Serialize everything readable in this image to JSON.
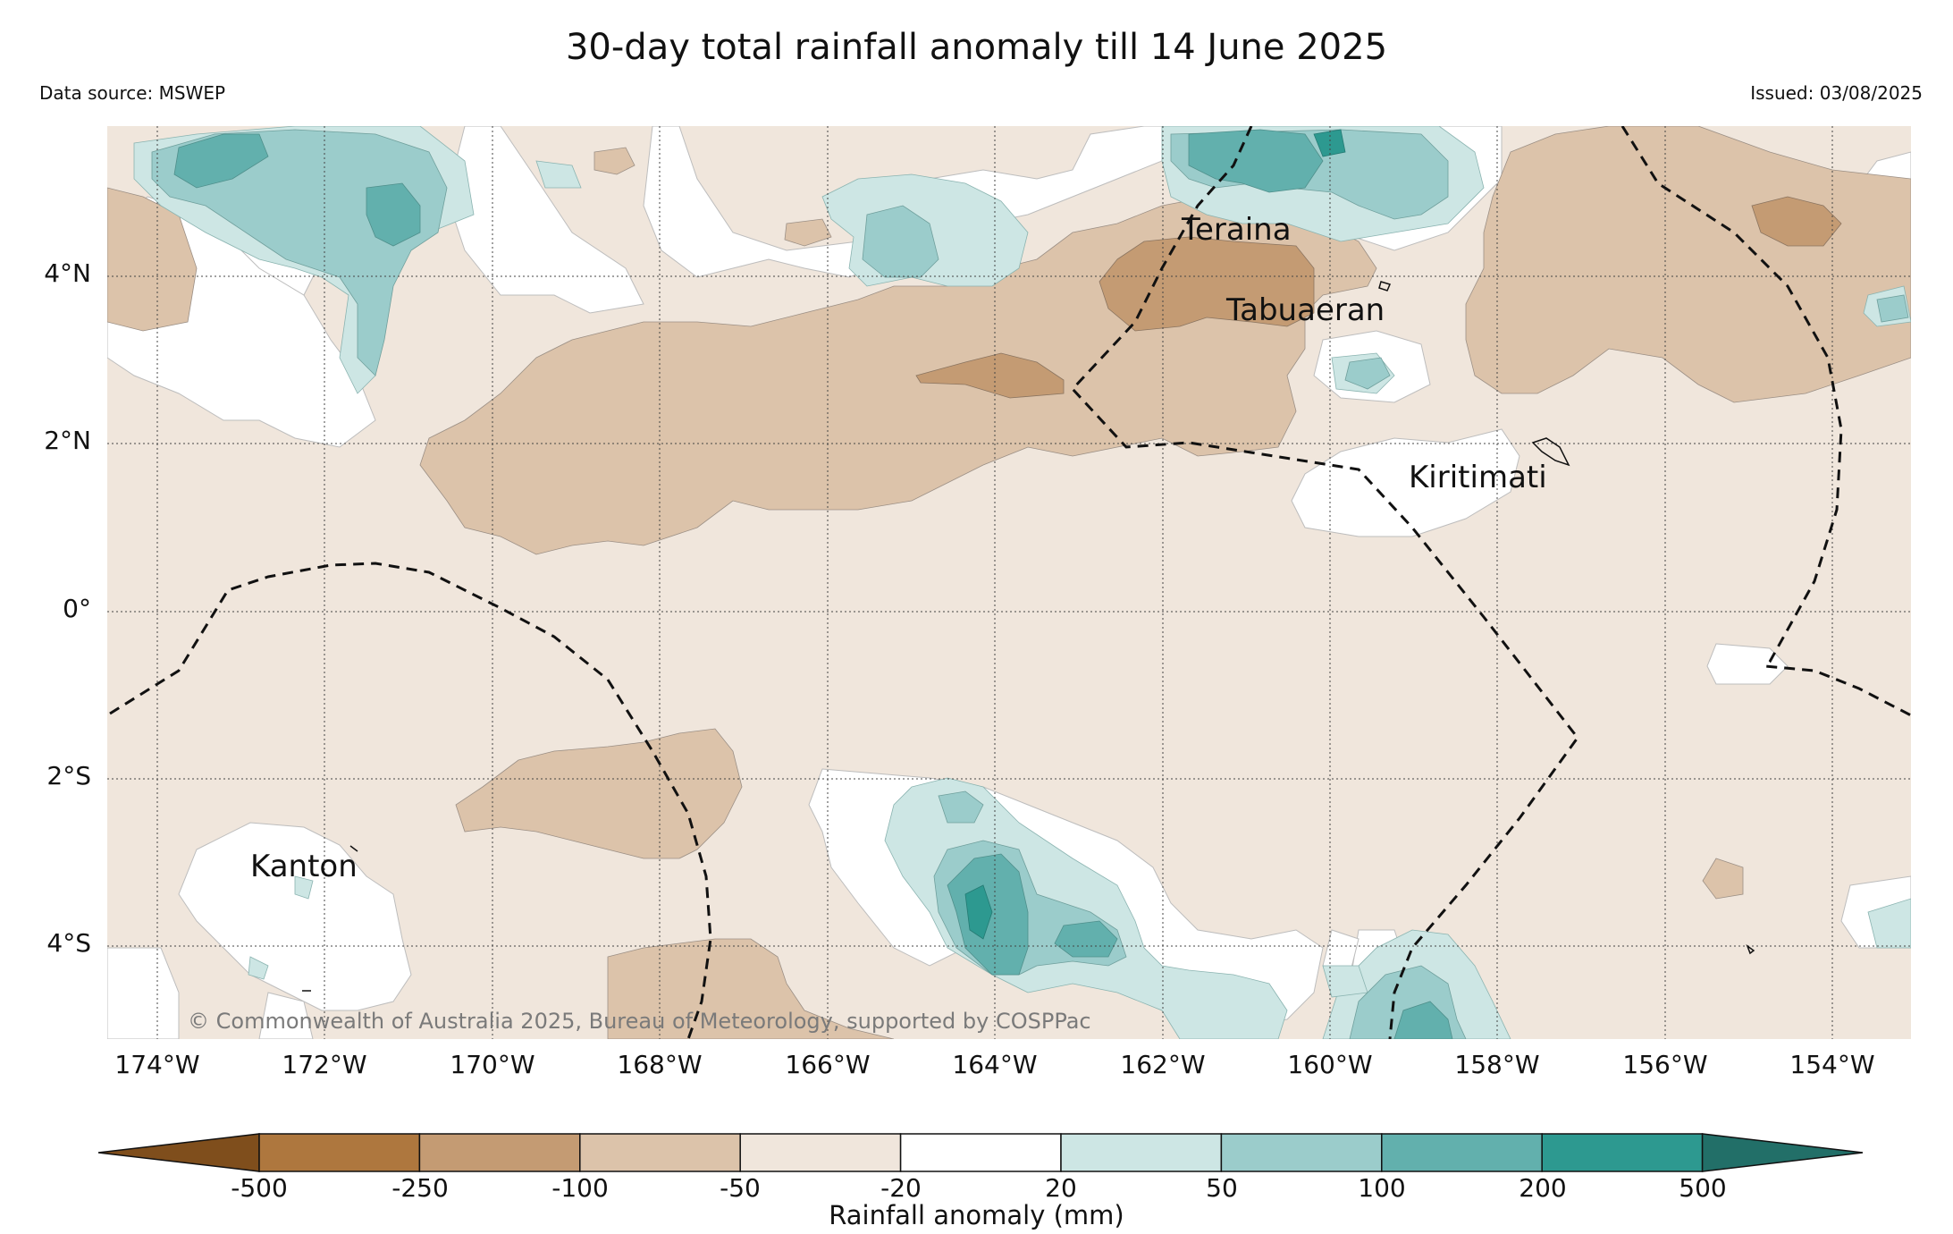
{
  "title": "30-day total rainfall anomaly till 14 June 2025",
  "data_source": "Data source: MSWEP",
  "issued": "Issued: 03/08/2025",
  "copyright": "© Commonwealth of Australia 2025, Bureau of Meteorology, supported by COSPPac",
  "lat_ticks": [
    "4°N",
    "2°N",
    "0°",
    "2°S",
    "4°S"
  ],
  "lon_ticks": [
    "174°W",
    "172°W",
    "170°W",
    "168°W",
    "166°W",
    "164°W",
    "162°W",
    "160°W",
    "158°W",
    "156°W",
    "154°W"
  ],
  "places": {
    "teraina": "Teraina",
    "tabuaeran": "Tabuaeran",
    "kiritimati": "Kiritimati",
    "kanton": "Kanton"
  },
  "colorbar": {
    "label": "Rainfall anomaly (mm)",
    "ticks": [
      "-500",
      "-250",
      "-100",
      "-50",
      "-20",
      "20",
      "50",
      "100",
      "200",
      "500"
    ],
    "colors": [
      "#7f4e1c",
      "#ae773e",
      "#c49b73",
      "#dcc3aa",
      "#f0e6dc",
      "#ffffff",
      "#cde6e4",
      "#9bcccb",
      "#62b0ad",
      "#2d9990",
      "#226f68"
    ]
  }
}
